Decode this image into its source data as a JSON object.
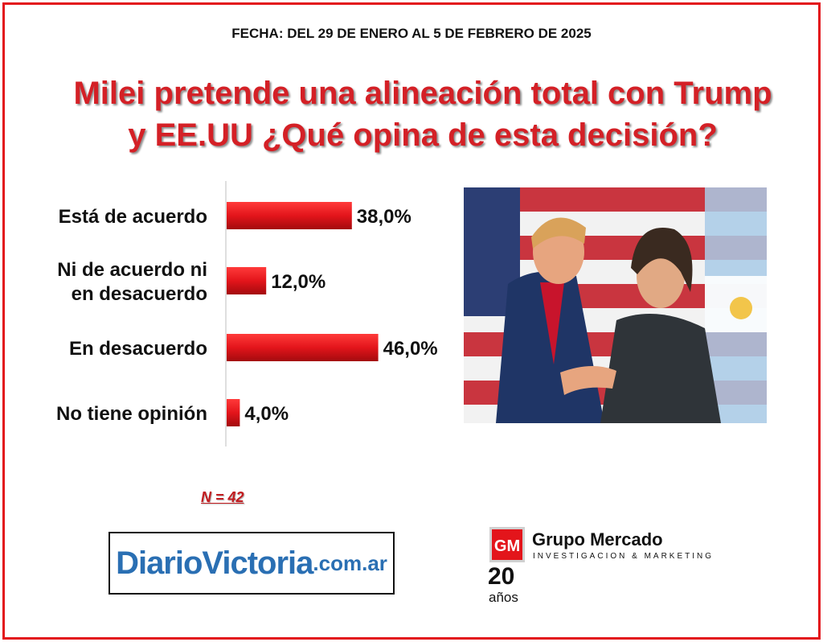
{
  "header": {
    "date": "FECHA: DEL 29 DE ENERO AL 5 DE FEBRERO DE 2025",
    "title_line1": "Milei pretende una alineación total con Trump",
    "title_line2": "y  EE.UU ¿Qué opina de esta decisión?"
  },
  "chart_data": {
    "type": "bar",
    "orientation": "horizontal",
    "categories": [
      [
        "Está de acuerdo"
      ],
      [
        "Ni de acuerdo ni",
        "en desacuerdo"
      ],
      [
        "En desacuerdo"
      ],
      [
        "No tiene opinión"
      ]
    ],
    "values": [
      38.0,
      12.0,
      46.0,
      4.0
    ],
    "value_labels": [
      "38,0%",
      "12,0%",
      "46,0%",
      "4,0%"
    ],
    "xlim": [
      0,
      100
    ],
    "bar_color": "#e3151b",
    "grid": false
  },
  "sample": {
    "n_label": "N = 42"
  },
  "logos": {
    "diario_main": "DiarioVictoria",
    "diario_sub": ".com.ar",
    "gm_initials": "GM",
    "gm_name": "Grupo Mercado",
    "gm_tagline": "INVESTIGACION & MARKETING",
    "gm_years": "20",
    "gm_years_word": "años"
  },
  "colors": {
    "accent": "#e3151b",
    "title": "#d42026",
    "diario": "#2a6fb3"
  }
}
